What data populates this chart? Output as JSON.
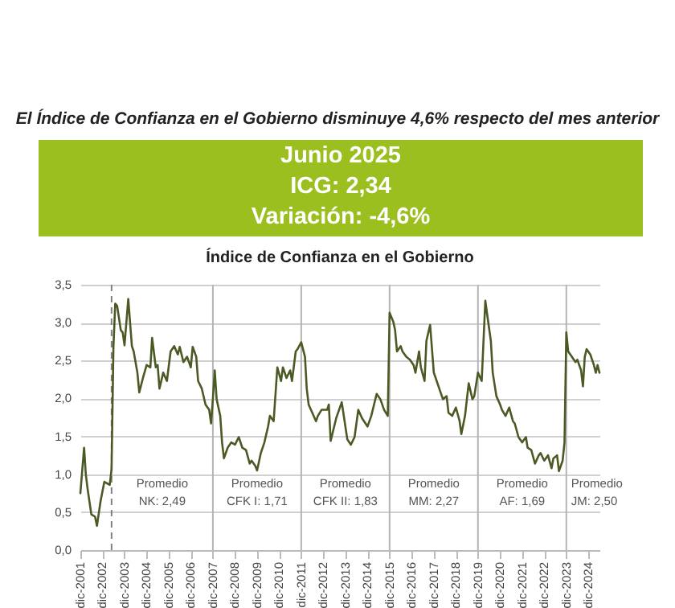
{
  "chart_data": {
    "type": "line",
    "title": "Índice de Confianza en el Gobierno",
    "subtitle": "El Índice de Confianza en el Gobierno disminuye 4,6% respecto del mes anterior",
    "x": [
      "2001-12",
      "2002-02",
      "2002-03",
      "2002-04",
      "2002-06",
      "2002-08",
      "2002-09",
      "2002-11",
      "2003-01",
      "2003-04",
      "2003-05",
      "2003-06",
      "2003-07",
      "2003-08",
      "2003-10",
      "2003-11",
      "2003-12",
      "2004-02",
      "2004-04",
      "2004-05",
      "2004-07",
      "2004-08",
      "2004-10",
      "2004-12",
      "2005-02",
      "2005-03",
      "2005-05",
      "2005-06",
      "2005-07",
      "2005-09",
      "2005-11",
      "2006-01",
      "2006-03",
      "2006-05",
      "2006-06",
      "2006-08",
      "2006-10",
      "2006-12",
      "2007-01",
      "2007-03",
      "2007-04",
      "2007-06",
      "2007-08",
      "2007-10",
      "2007-11",
      "2007-12",
      "2008-01",
      "2008-02",
      "2008-04",
      "2008-05",
      "2008-06",
      "2008-08",
      "2008-10",
      "2008-12",
      "2009-02",
      "2009-04",
      "2009-06",
      "2009-08",
      "2009-09",
      "2009-11",
      "2009-12",
      "2010-02",
      "2010-04",
      "2010-06",
      "2010-07",
      "2010-09",
      "2010-11",
      "2011-01",
      "2011-02",
      "2011-04",
      "2011-06",
      "2011-07",
      "2011-09",
      "2011-10",
      "2011-12",
      "2012-02",
      "2012-03",
      "2012-04",
      "2012-06",
      "2012-08",
      "2012-09",
      "2012-11",
      "2013-02",
      "2013-03",
      "2013-04",
      "2013-07",
      "2013-10",
      "2014-01",
      "2014-03",
      "2014-05",
      "2014-07",
      "2014-09",
      "2014-12",
      "2015-02",
      "2015-05",
      "2015-07",
      "2015-09",
      "2015-11",
      "2015-12",
      "2016-02",
      "2016-03",
      "2016-04",
      "2016-06",
      "2016-07",
      "2016-09",
      "2016-11",
      "2017-01",
      "2017-02",
      "2017-04",
      "2017-05",
      "2017-07",
      "2017-08",
      "2017-10",
      "2017-12",
      "2018-01",
      "2018-03",
      "2018-05",
      "2018-07",
      "2018-08",
      "2018-10",
      "2018-12",
      "2019-02",
      "2019-03",
      "2019-05",
      "2019-07",
      "2019-09",
      "2019-10",
      "2019-12",
      "2020-02",
      "2020-04",
      "2020-05",
      "2020-07",
      "2020-08",
      "2020-10",
      "2020-12",
      "2021-01",
      "2021-03",
      "2021-05",
      "2021-07",
      "2021-08",
      "2021-10",
      "2021-12",
      "2022-02",
      "2022-03",
      "2022-05",
      "2022-07",
      "2022-09",
      "2022-10",
      "2022-12",
      "2023-02",
      "2023-04",
      "2023-05",
      "2023-07",
      "2023-08",
      "2023-10",
      "2023-11",
      "2023-12",
      "2024-01",
      "2024-03",
      "2024-05",
      "2024-06",
      "2024-08",
      "2024-09",
      "2024-10",
      "2024-11",
      "2025-01",
      "2025-03",
      "2025-04",
      "2025-05",
      "2025-06"
    ],
    "series": [
      {
        "color": "#4b5a24",
        "values": [
          0.75,
          1.35,
          1.0,
          0.8,
          0.47,
          0.44,
          0.32,
          0.65,
          0.9,
          0.86,
          1.07,
          2.69,
          3.25,
          3.22,
          2.9,
          2.87,
          2.7,
          3.31,
          2.69,
          2.62,
          2.34,
          2.08,
          2.27,
          2.44,
          2.41,
          2.8,
          2.41,
          2.44,
          2.13,
          2.34,
          2.23,
          2.62,
          2.69,
          2.58,
          2.68,
          2.48,
          2.55,
          2.41,
          2.68,
          2.55,
          2.23,
          2.13,
          1.92,
          1.85,
          1.67,
          1.99,
          2.37,
          1.99,
          1.77,
          1.42,
          1.21,
          1.35,
          1.42,
          1.39,
          1.49,
          1.35,
          1.32,
          1.14,
          1.18,
          1.11,
          1.05,
          1.28,
          1.42,
          1.63,
          1.77,
          1.7,
          2.41,
          2.23,
          2.41,
          2.27,
          2.37,
          2.23,
          2.62,
          2.65,
          2.74,
          2.55,
          2.13,
          1.92,
          1.81,
          1.7,
          1.77,
          1.85,
          1.85,
          1.92,
          1.44,
          1.74,
          1.95,
          1.46,
          1.39,
          1.49,
          1.85,
          1.74,
          1.63,
          1.77,
          2.06,
          1.99,
          1.85,
          1.77,
          3.13,
          3.01,
          2.9,
          2.62,
          2.69,
          2.62,
          2.55,
          2.51,
          2.44,
          2.34,
          2.62,
          2.41,
          2.23,
          2.76,
          2.97,
          2.34,
          2.27,
          2.13,
          1.99,
          2.03,
          1.81,
          1.77,
          1.88,
          1.7,
          1.53,
          1.77,
          2.2,
          1.99,
          2.03,
          2.34,
          2.23,
          3.29,
          3.11,
          2.76,
          2.34,
          2.03,
          1.92,
          1.85,
          1.77,
          1.88,
          1.7,
          1.67,
          1.49,
          1.42,
          1.49,
          1.35,
          1.32,
          1.14,
          1.25,
          1.28,
          1.18,
          1.25,
          1.08,
          1.21,
          1.25,
          1.04,
          1.18,
          1.42,
          2.87,
          2.62,
          2.55,
          2.48,
          2.51,
          2.37,
          2.16,
          2.55,
          2.65,
          2.58,
          2.44,
          2.34,
          2.44,
          2.34
        ]
      }
    ],
    "xlim": [
      "2001-12",
      "2025-06"
    ],
    "xticks": [
      {
        "value": "2001-12",
        "label": "dic-2001"
      },
      {
        "value": "2002-12",
        "label": "dic-2002"
      },
      {
        "value": "2003-12",
        "label": "dic-2003"
      },
      {
        "value": "2004-12",
        "label": "dic-2004"
      },
      {
        "value": "2005-12",
        "label": "dic-2005"
      },
      {
        "value": "2006-12",
        "label": "dic-2006"
      },
      {
        "value": "2007-12",
        "label": "dic-2007"
      },
      {
        "value": "2008-12",
        "label": "dic-2008"
      },
      {
        "value": "2009-12",
        "label": "dic-2009"
      },
      {
        "value": "2010-12",
        "label": "dic-2010"
      },
      {
        "value": "2011-12",
        "label": "dic-2011"
      },
      {
        "value": "2012-12",
        "label": "dic-2012"
      },
      {
        "value": "2013-12",
        "label": "dic-2013"
      },
      {
        "value": "2014-12",
        "label": "dic-2014"
      },
      {
        "value": "2015-12",
        "label": "dic-2015"
      },
      {
        "value": "2016-12",
        "label": "dic-2016"
      },
      {
        "value": "2017-12",
        "label": "dic-2017"
      },
      {
        "value": "2018-12",
        "label": "dic-2018"
      },
      {
        "value": "2019-12",
        "label": "dic-2019"
      },
      {
        "value": "2020-12",
        "label": "dic-2020"
      },
      {
        "value": "2021-12",
        "label": "dic-2021"
      },
      {
        "value": "2022-12",
        "label": "dic-2022"
      },
      {
        "value": "2023-12",
        "label": "dic-2023"
      },
      {
        "value": "2024-12",
        "label": "dic-2024"
      }
    ],
    "ylim": [
      0,
      3.5
    ],
    "yticks": [
      {
        "value": 0,
        "label": "0,0"
      },
      {
        "value": 0.5,
        "label": "0,5"
      },
      {
        "value": 1,
        "label": "1,0"
      },
      {
        "value": 1.5,
        "label": "1,5"
      },
      {
        "value": 2,
        "label": "2,0"
      },
      {
        "value": 2.5,
        "label": "2,5"
      },
      {
        "value": 3,
        "label": "3,0"
      },
      {
        "value": 3.5,
        "label": "3,5"
      }
    ],
    "grid": "y",
    "ref_lines": [
      {
        "axis": "x",
        "value": "2003-05",
        "label": null,
        "color": "#808080",
        "line_style": "dashed"
      },
      {
        "axis": "x",
        "value": "2007-12",
        "label": null,
        "color": "#b4b4b4"
      },
      {
        "axis": "x",
        "value": "2011-12",
        "label": null,
        "color": "#b4b4b4"
      },
      {
        "axis": "x",
        "value": "2015-12",
        "label": null,
        "color": "#b4b4b4"
      },
      {
        "axis": "x",
        "value": "2019-12",
        "label": null,
        "color": "#b4b4b4"
      },
      {
        "axis": "x",
        "value": "2023-12",
        "label": null,
        "color": "#b4b4b4"
      }
    ],
    "annotations": [
      "Junio 2025",
      "ICG: 2,34",
      "Variación: -4,6%",
      "Promedio\nNK: 2,49",
      "Promedio\nCFK I: 1,71",
      "Promedio\nCFK II: 1,83",
      "Promedio\nMM: 2,27",
      "Promedio\nAF: 1,69",
      "Promedio\nJM: 2,50"
    ]
  }
}
